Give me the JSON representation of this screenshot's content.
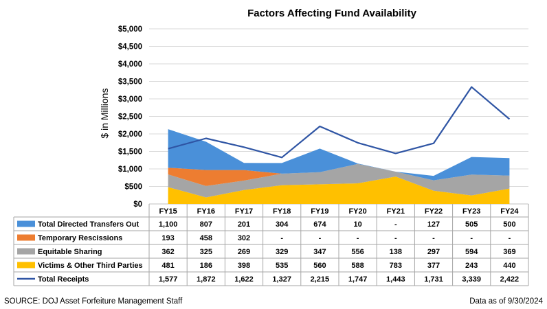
{
  "chart_data": {
    "type": "area",
    "title": "Factors Affecting Fund Availability",
    "ylabel": "$ in Millions",
    "xlabel": "",
    "ylim": [
      0,
      5000
    ],
    "yticks": [
      0,
      500,
      1000,
      1500,
      2000,
      2500,
      3000,
      3500,
      4000,
      4500,
      5000
    ],
    "ytick_labels": [
      "$0",
      "$500",
      "$1,000",
      "$1,500",
      "$2,000",
      "$2,500",
      "$3,000",
      "$3,500",
      "$4,000",
      "$4,500",
      "$5,000"
    ],
    "grid": true,
    "categories": [
      "FY15",
      "FY16",
      "FY17",
      "FY18",
      "FY19",
      "FY20",
      "FY21",
      "FY22",
      "FY23",
      "FY24"
    ],
    "series": [
      {
        "name": "Total Directed Transfers Out",
        "kind": "area",
        "color": "#4a90d9",
        "values": [
          1100,
          807,
          201,
          304,
          674,
          10,
          0,
          127,
          505,
          500
        ],
        "labels": [
          "1,100",
          "807",
          "201",
          "304",
          "674",
          "10",
          "-",
          "127",
          "505",
          "500"
        ]
      },
      {
        "name": "Temporary Rescissions",
        "kind": "area",
        "color": "#ed7d31",
        "values": [
          193,
          458,
          302,
          0,
          0,
          0,
          0,
          0,
          0,
          0
        ],
        "labels": [
          "193",
          "458",
          "302",
          "-",
          "-",
          "-",
          "-",
          "-",
          "-",
          "-"
        ]
      },
      {
        "name": "Equitable Sharing",
        "kind": "area",
        "color": "#a5a5a5",
        "values": [
          362,
          325,
          269,
          329,
          347,
          556,
          138,
          297,
          594,
          369
        ],
        "labels": [
          "362",
          "325",
          "269",
          "329",
          "347",
          "556",
          "138",
          "297",
          "594",
          "369"
        ]
      },
      {
        "name": "Victims & Other Third Parties",
        "kind": "area",
        "color": "#ffc000",
        "values": [
          481,
          186,
          398,
          535,
          560,
          588,
          783,
          377,
          243,
          440
        ],
        "labels": [
          "481",
          "186",
          "398",
          "535",
          "560",
          "588",
          "783",
          "377",
          "243",
          "440"
        ]
      },
      {
        "name": "Total Receipts",
        "kind": "line",
        "color": "#2f55a4",
        "values": [
          1577,
          1872,
          1622,
          1327,
          2215,
          1747,
          1443,
          1731,
          3339,
          2422
        ],
        "labels": [
          "1,577",
          "1,872",
          "1,622",
          "1,327",
          "2,215",
          "1,747",
          "1,443",
          "1,731",
          "3,339",
          "2,422"
        ]
      }
    ]
  },
  "footer": {
    "source": "SOURCE:  DOJ Asset Forfeiture Management Staff",
    "asof": "Data as of 9/30/2024"
  }
}
